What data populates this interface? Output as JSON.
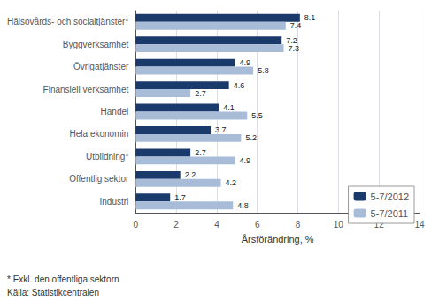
{
  "chart_data": {
    "type": "bar",
    "orientation": "horizontal",
    "categories": [
      "Hälsovårds- och socialtjänster*",
      "Byggverksamhet",
      "Övrigatjänster",
      "Finansiell verksamhet",
      "Handel",
      "Hela ekonomin",
      "Utbildning*",
      "Offentlig sektor",
      "Industri"
    ],
    "series": [
      {
        "name": "5-7/2012",
        "color": "#1a3a6b",
        "values": [
          8.1,
          7.2,
          4.9,
          4.6,
          4.1,
          3.7,
          2.7,
          2.2,
          1.7
        ]
      },
      {
        "name": "5-7/2011",
        "color": "#a8bcd8",
        "values": [
          7.4,
          7.3,
          5.8,
          2.7,
          5.5,
          5.2,
          4.9,
          4.2,
          4.8
        ]
      }
    ],
    "xlabel": "Årsförändring, %",
    "xlim": [
      0,
      14
    ],
    "xticks": [
      0,
      2,
      4,
      6,
      8,
      10,
      12,
      14
    ],
    "grid": true,
    "legend": "lower right",
    "data_labels": true,
    "annotations": [
      "* Exkl. den offentliga sektorn",
      "Källa: Statistikcentralen"
    ]
  }
}
